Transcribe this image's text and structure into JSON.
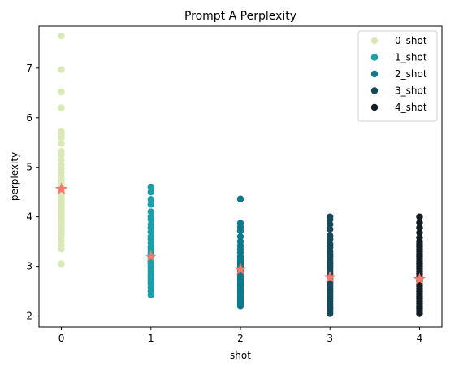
{
  "chart_data": {
    "type": "scatter",
    "title": "Prompt A Perplexity",
    "xlabel": "shot",
    "ylabel": "perplexity",
    "xlim": [
      -0.25,
      4.25
    ],
    "ylim": [
      1.78,
      7.85
    ],
    "x_ticks": [
      0,
      1,
      2,
      3,
      4
    ],
    "y_ticks": [
      2,
      3,
      4,
      5,
      6,
      7
    ],
    "grid": false,
    "legend_position": "top-right",
    "series": [
      {
        "name": "0_shot",
        "x": 0,
        "color": "#d9e8b9",
        "values": [
          7.65,
          6.97,
          6.52,
          6.2,
          5.72,
          5.65,
          5.6,
          5.48,
          5.32,
          5.25,
          5.15,
          5.05,
          4.98,
          4.9,
          4.82,
          4.75,
          4.68,
          4.62,
          4.55,
          4.5,
          4.45,
          4.4,
          4.35,
          4.3,
          4.25,
          4.2,
          4.15,
          4.1,
          4.05,
          4.0,
          3.95,
          3.9,
          3.85,
          3.78,
          3.72,
          3.65,
          3.58,
          3.5,
          3.42,
          3.35,
          3.05
        ]
      },
      {
        "name": "1_shot",
        "x": 1,
        "color": "#1aa0a8",
        "values": [
          4.6,
          4.5,
          4.35,
          4.25,
          4.1,
          4.0,
          3.95,
          3.85,
          3.78,
          3.7,
          3.6,
          3.55,
          3.48,
          3.4,
          3.35,
          3.3,
          3.25,
          3.2,
          3.15,
          3.1,
          3.05,
          3.0,
          2.95,
          2.9,
          2.85,
          2.8,
          2.75,
          2.7,
          2.65,
          2.58,
          2.5,
          2.43
        ]
      },
      {
        "name": "2_shot",
        "x": 2,
        "color": "#0c7a8c",
        "values": [
          4.36,
          3.87,
          3.8,
          3.72,
          3.6,
          3.5,
          3.42,
          3.35,
          3.28,
          3.2,
          3.15,
          3.1,
          3.05,
          3.0,
          2.95,
          2.9,
          2.85,
          2.8,
          2.75,
          2.7,
          2.65,
          2.6,
          2.55,
          2.5,
          2.45,
          2.4,
          2.35,
          2.3,
          2.25,
          2.2
        ]
      },
      {
        "name": "3_shot",
        "x": 3,
        "color": "#164a5a",
        "values": [
          4.0,
          3.95,
          3.85,
          3.75,
          3.62,
          3.55,
          3.45,
          3.38,
          3.3,
          3.25,
          3.2,
          3.15,
          3.1,
          3.05,
          3.0,
          2.95,
          2.9,
          2.85,
          2.8,
          2.75,
          2.7,
          2.65,
          2.6,
          2.55,
          2.5,
          2.45,
          2.4,
          2.35,
          2.3,
          2.25,
          2.2,
          2.15,
          2.1,
          2.05
        ]
      },
      {
        "name": "4_shot",
        "x": 4,
        "color": "#141c26",
        "values": [
          4.0,
          3.88,
          3.78,
          3.68,
          3.58,
          3.5,
          3.45,
          3.4,
          3.35,
          3.3,
          3.25,
          3.2,
          3.15,
          3.1,
          3.05,
          3.0,
          2.95,
          2.9,
          2.85,
          2.8,
          2.75,
          2.7,
          2.65,
          2.6,
          2.55,
          2.5,
          2.45,
          2.4,
          2.35,
          2.3,
          2.25,
          2.2,
          2.15,
          2.1,
          2.05
        ]
      }
    ],
    "mean_markers": {
      "shape": "star",
      "color": "#f07a70",
      "points": [
        {
          "x": 0,
          "y": 4.56
        },
        {
          "x": 1,
          "y": 3.2
        },
        {
          "x": 2,
          "y": 2.94
        },
        {
          "x": 3,
          "y": 2.78
        },
        {
          "x": 4,
          "y": 2.74
        }
      ]
    }
  }
}
